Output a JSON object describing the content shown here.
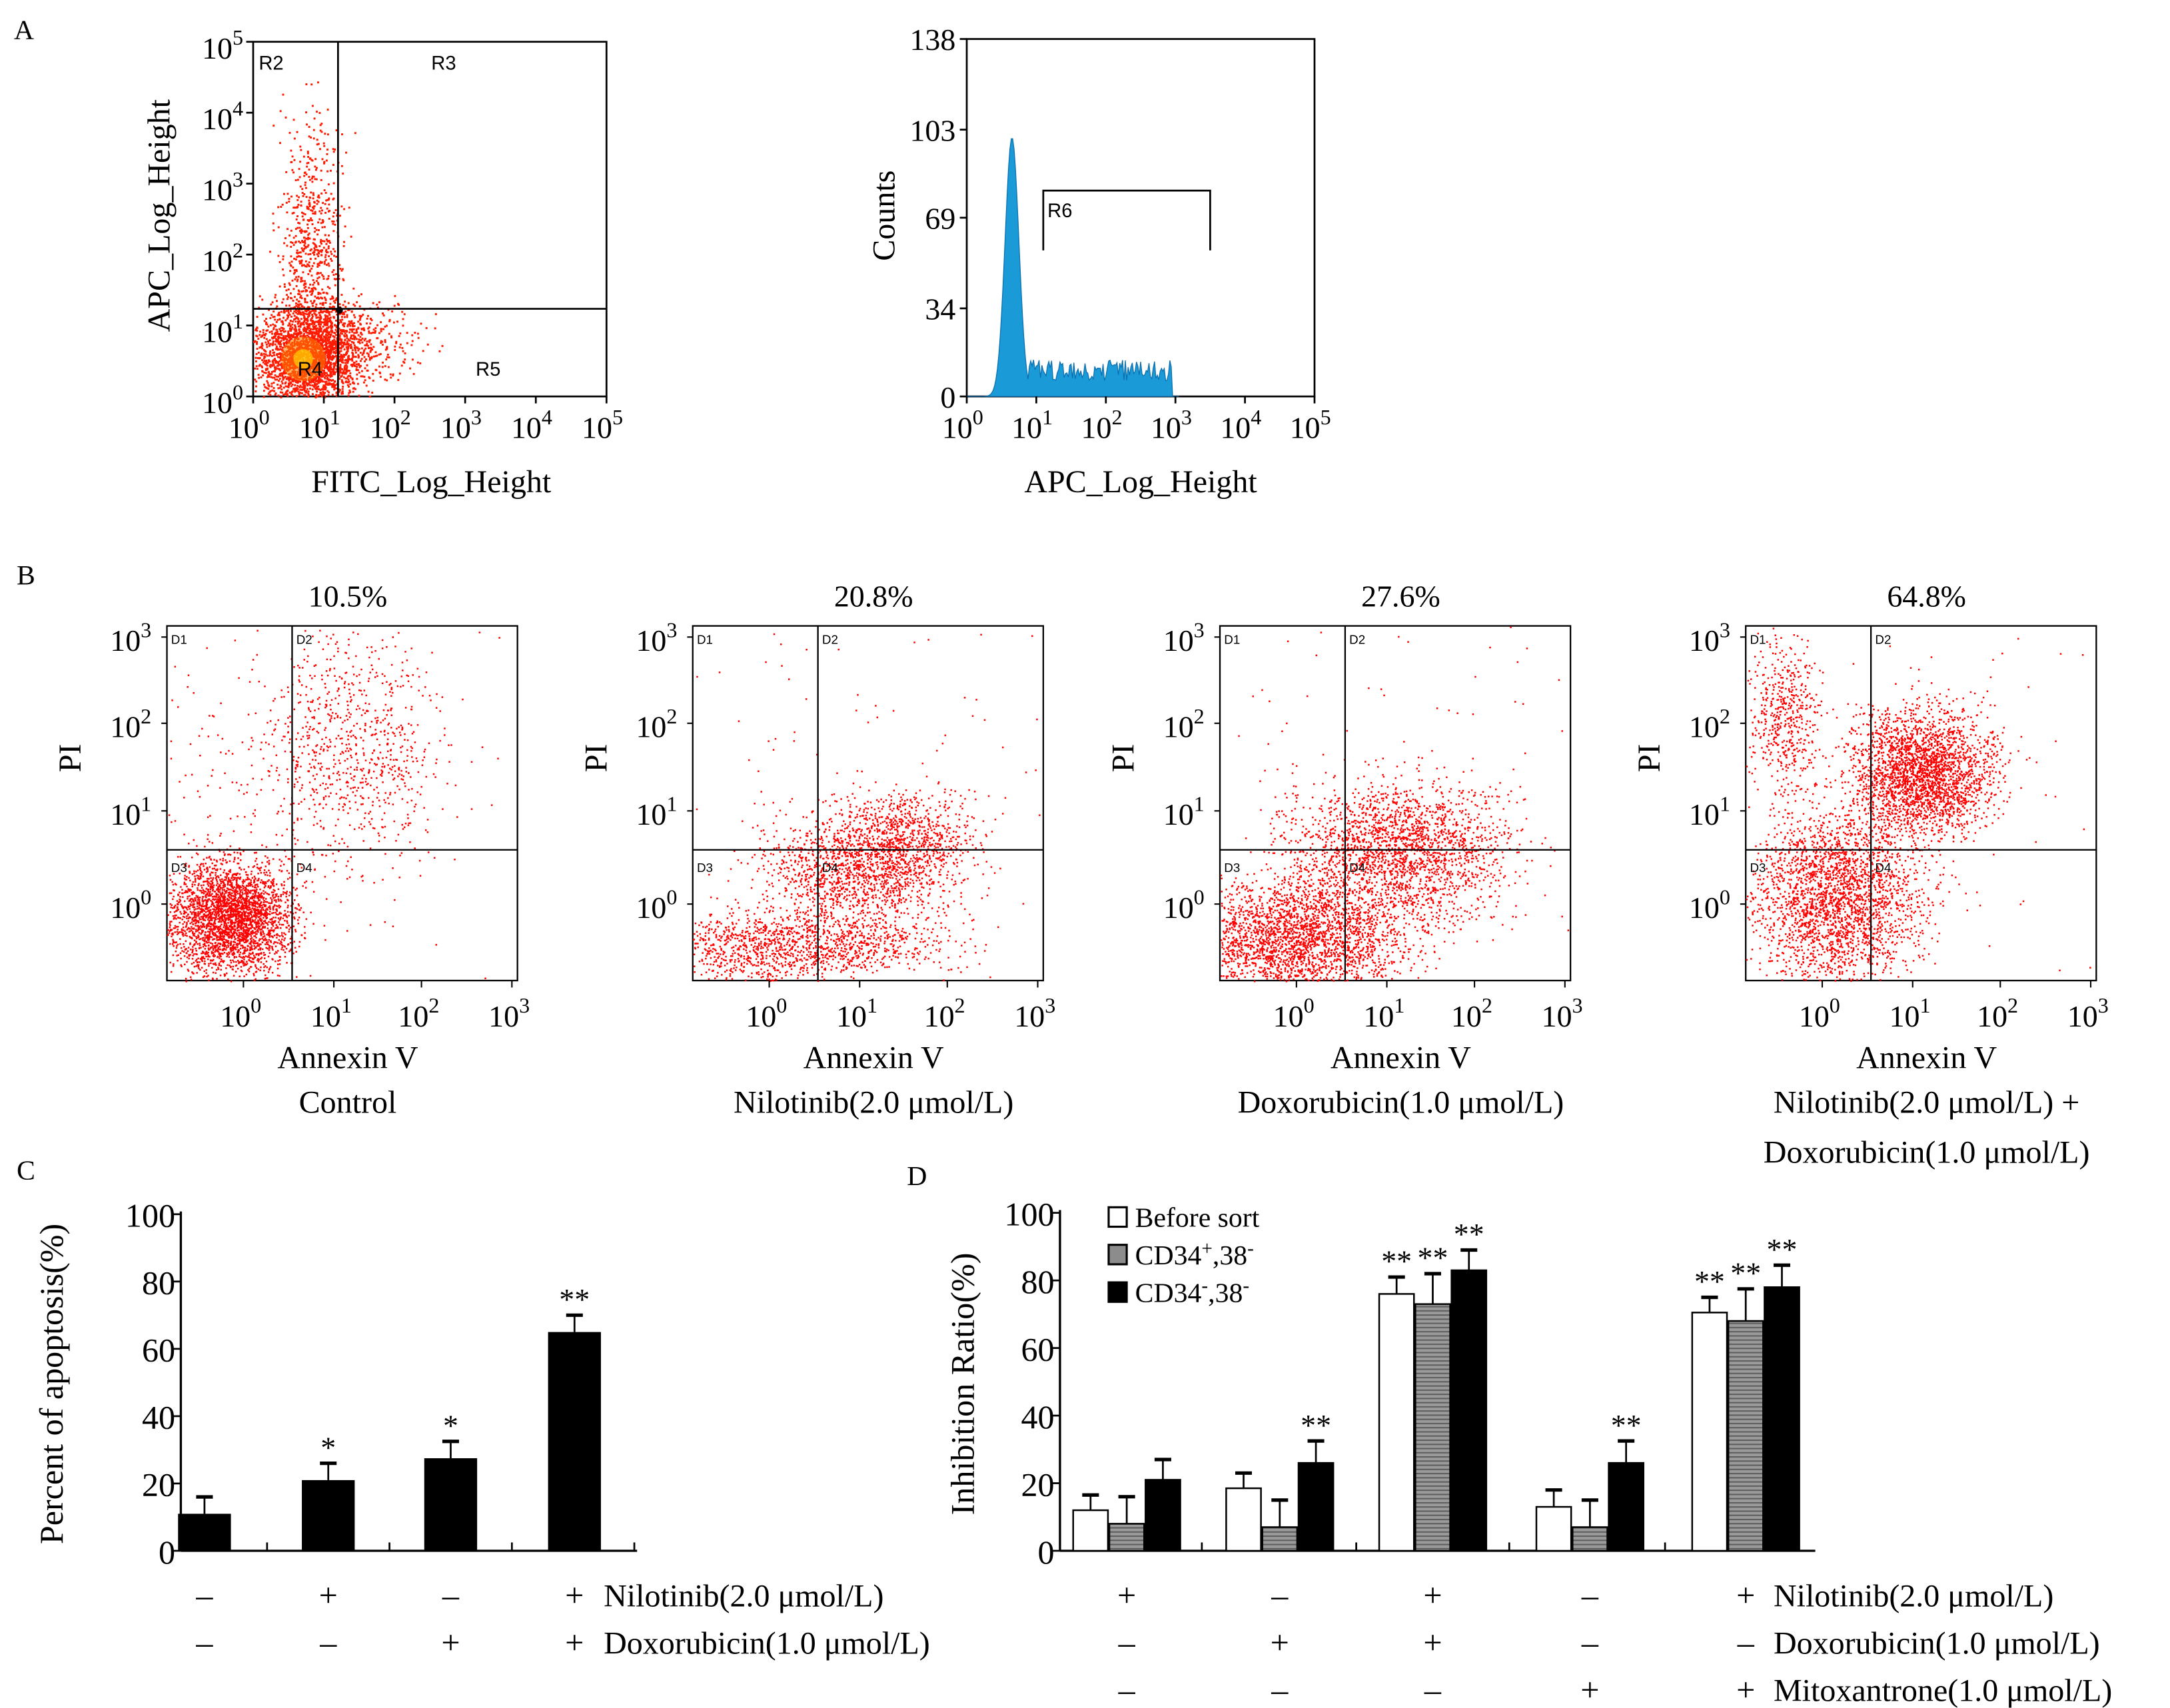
{
  "chart_data": [
    {
      "panel": "A",
      "type": "scatter",
      "panel_label": "A",
      "xlabel": "FITC_Log_Height",
      "ylabel": "APC_Log_Height",
      "xticks": [
        "10",
        "10",
        "10",
        "10",
        "10",
        "10"
      ],
      "xexp": [
        "0",
        "1",
        "2",
        "3",
        "4",
        "5"
      ],
      "yticks": [
        "10",
        "10",
        "10",
        "10",
        "10",
        "10"
      ],
      "yexp": [
        "0",
        "1",
        "2",
        "3",
        "4",
        "5"
      ],
      "xlim_log10": [
        0,
        5
      ],
      "ylim_log10": [
        0,
        5
      ],
      "gate_x_log10": 1.2,
      "gate_y_log10": 1.25,
      "regions": [
        "R2",
        "R3",
        "R4",
        "R5"
      ],
      "color": "#ff0000"
    },
    {
      "panel": "A-histogram",
      "type": "area",
      "xlabel": "APC_Log_Height",
      "ylabel": "Counts",
      "xticks": [
        "10",
        "10",
        "10",
        "10",
        "10",
        "10"
      ],
      "xexp": [
        "0",
        "1",
        "2",
        "3",
        "4",
        "5"
      ],
      "yticks": [
        "0",
        "34",
        "69",
        "103",
        "138"
      ],
      "ylim": [
        0,
        138
      ],
      "xlim_log10": [
        0,
        5
      ],
      "peak_log10": 0.65,
      "peak_count": 100,
      "region": "R6",
      "region_range_log10": [
        1.1,
        3.5
      ],
      "color": "#1a9ad6"
    },
    {
      "panel": "B",
      "type": "scatter",
      "panel_label": "B",
      "xlabel": "Annexin V",
      "ylabel": "PI",
      "xticks": [
        "10",
        "10",
        "10",
        "10"
      ],
      "xexp": [
        "0",
        "1",
        "2",
        "3"
      ],
      "yticks": [
        "10",
        "10",
        "10",
        "10"
      ],
      "yexp": [
        "0",
        "1",
        "2",
        "3"
      ],
      "quadrants": [
        "D1",
        "D2",
        "D3",
        "D4"
      ],
      "plots": [
        {
          "title": "10.5%",
          "condition": [
            "Control"
          ]
        },
        {
          "title": "20.8%",
          "condition": [
            "Nilotinib(2.0 μmol/L)"
          ]
        },
        {
          "title": "27.6%",
          "condition": [
            "Doxorubicin(1.0 μmol/L)"
          ]
        },
        {
          "title": "64.8%",
          "condition": [
            "Nilotinib(2.0 μmol/L) +",
            "Doxorubicin(1.0 μmol/L)"
          ]
        }
      ],
      "color": "#ff0000"
    },
    {
      "panel": "C",
      "type": "bar",
      "panel_label": "C",
      "ylabel": "Percent of apoptosis(%)",
      "ylim": [
        0,
        100
      ],
      "yticks": [
        "0",
        "20",
        "40",
        "60",
        "80",
        "100"
      ],
      "values": [
        11,
        21,
        27.5,
        65
      ],
      "errors": [
        5,
        5,
        5,
        5
      ],
      "significance": [
        "",
        "*",
        "*",
        "**"
      ],
      "treatments": [
        {
          "label": "Nilotinib(2.0 μmol/L)",
          "signs": [
            "–",
            "+",
            "–",
            "+"
          ]
        },
        {
          "label": "Doxorubicin(1.0 μmol/L)",
          "signs": [
            "–",
            "–",
            "+",
            "+"
          ]
        }
      ],
      "color": "#000000"
    },
    {
      "panel": "D",
      "type": "bar",
      "panel_label": "D",
      "ylabel": "Inhibition Ratio(%)",
      "ylim": [
        0,
        100
      ],
      "yticks": [
        "0",
        "20",
        "40",
        "60",
        "80",
        "100"
      ],
      "series": [
        {
          "name": "Before sort",
          "sup": "",
          "color": "#ffffff",
          "values": [
            12,
            18.5,
            76,
            13,
            70.5
          ],
          "errors": [
            4.5,
            4.5,
            5,
            5,
            4.5
          ],
          "significance": [
            "",
            "",
            "**",
            "",
            "**"
          ]
        },
        {
          "name": "CD34",
          "sup": "+",
          "suffix": ",38",
          "sup2": "-",
          "color": "#8c8c8c",
          "values": [
            8,
            7,
            73,
            7,
            68
          ],
          "errors": [
            8,
            8,
            9,
            8,
            9.5
          ],
          "significance": [
            "",
            "",
            "**",
            "",
            "**"
          ]
        },
        {
          "name": "CD34",
          "sup": "-",
          "suffix": ",38",
          "sup2": "-",
          "color": "#000000",
          "values": [
            21,
            26,
            83,
            26,
            78
          ],
          "errors": [
            6,
            6.5,
            6,
            6.5,
            6.5
          ],
          "significance": [
            "",
            "**",
            "**",
            "**",
            "**"
          ]
        }
      ],
      "legend_label_0": "Before sort",
      "treatments": [
        {
          "label": "Nilotinib(2.0 μmol/L)",
          "signs": [
            "+",
            "–",
            "+",
            "–",
            "+"
          ]
        },
        {
          "label": "Doxorubicin(1.0 μmol/L)",
          "signs": [
            "–",
            "+",
            "+",
            "–",
            "–"
          ]
        },
        {
          "label": "Mitoxantrone(1.0 μmol/L)",
          "signs": [
            "–",
            "–",
            "–",
            "+",
            "+"
          ]
        }
      ],
      "legend_position": "top-left"
    }
  ]
}
